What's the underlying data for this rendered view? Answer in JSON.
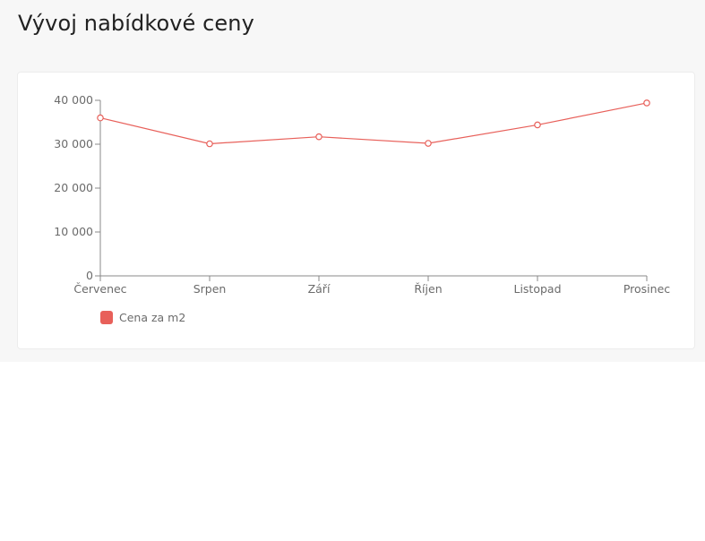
{
  "page": {
    "title": "Vývoj nabídkové ceny"
  },
  "chart_data": {
    "type": "line",
    "categories": [
      "Červenec",
      "Srpen",
      "Září",
      "Říjen",
      "Listopad",
      "Prosinec"
    ],
    "series": [
      {
        "name": "Cena za m2",
        "values": [
          36000,
          30100,
          31700,
          30200,
          34400,
          39400
        ],
        "color": "#e8605a"
      }
    ],
    "yticks": [
      "0",
      "10 000",
      "20 000",
      "30 000",
      "40 000"
    ],
    "ylim": [
      0,
      40000
    ],
    "legend": "bottom-left",
    "grid": false
  },
  "colors": {
    "axis": "#888888",
    "tick_text": "#6b6b6b"
  }
}
